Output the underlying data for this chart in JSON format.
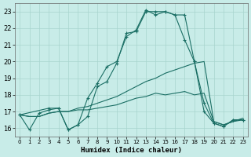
{
  "title": "",
  "xlabel": "Humidex (Indice chaleur)",
  "bg_color": "#c8ece8",
  "grid_color": "#a8d4ce",
  "line_color": "#1a6e64",
  "xlim": [
    -0.5,
    23.5
  ],
  "ylim": [
    15.5,
    23.5
  ],
  "yticks": [
    16,
    17,
    18,
    19,
    20,
    21,
    22,
    23
  ],
  "xticks": [
    0,
    1,
    2,
    3,
    4,
    5,
    6,
    7,
    8,
    9,
    10,
    11,
    12,
    13,
    14,
    15,
    16,
    17,
    18,
    19,
    20,
    21,
    22,
    23
  ],
  "series": [
    {
      "x": [
        0,
        1,
        2,
        3,
        4,
        5,
        6,
        7,
        8,
        9,
        10,
        11,
        12,
        13,
        14,
        15,
        16,
        17,
        18,
        19,
        20,
        21,
        22,
        23
      ],
      "y": [
        16.8,
        15.9,
        16.9,
        17.1,
        17.2,
        15.9,
        16.2,
        17.8,
        18.7,
        19.7,
        20.0,
        21.5,
        21.9,
        23.1,
        22.8,
        23.0,
        22.8,
        22.8,
        20.0,
        17.0,
        16.3,
        16.1,
        16.5,
        16.5
      ],
      "marker": true,
      "markersize": 2.5,
      "lw": 0.8
    },
    {
      "x": [
        0,
        3,
        4,
        5,
        6,
        7,
        8,
        9,
        10,
        11,
        12,
        13,
        14,
        15,
        16,
        17,
        18,
        19,
        20,
        21,
        22,
        23
      ],
      "y": [
        16.8,
        17.2,
        17.2,
        15.9,
        16.2,
        16.7,
        18.5,
        18.8,
        19.9,
        21.7,
        21.8,
        23.0,
        23.0,
        23.0,
        22.8,
        21.3,
        20.0,
        17.5,
        16.3,
        16.1,
        16.5,
        16.5
      ],
      "marker": true,
      "markersize": 2.5,
      "lw": 0.8
    },
    {
      "x": [
        0,
        1,
        2,
        3,
        4,
        5,
        6,
        7,
        8,
        9,
        10,
        11,
        12,
        13,
        14,
        15,
        16,
        17,
        18,
        19,
        20,
        21,
        22,
        23
      ],
      "y": [
        16.8,
        16.7,
        16.7,
        16.9,
        17.0,
        17.0,
        17.2,
        17.3,
        17.5,
        17.7,
        17.9,
        18.2,
        18.5,
        18.8,
        19.0,
        19.3,
        19.5,
        19.7,
        19.9,
        20.0,
        16.4,
        16.2,
        16.4,
        16.6
      ],
      "marker": false,
      "markersize": 0,
      "lw": 0.8
    },
    {
      "x": [
        0,
        1,
        2,
        3,
        4,
        5,
        6,
        7,
        8,
        9,
        10,
        11,
        12,
        13,
        14,
        15,
        16,
        17,
        18,
        19,
        20,
        21,
        22,
        23
      ],
      "y": [
        16.8,
        16.7,
        16.7,
        16.9,
        17.0,
        17.0,
        17.1,
        17.1,
        17.2,
        17.3,
        17.4,
        17.6,
        17.8,
        17.9,
        18.1,
        18.0,
        18.1,
        18.2,
        18.0,
        18.1,
        16.4,
        16.2,
        16.4,
        16.5
      ],
      "marker": false,
      "markersize": 0,
      "lw": 0.8
    }
  ]
}
